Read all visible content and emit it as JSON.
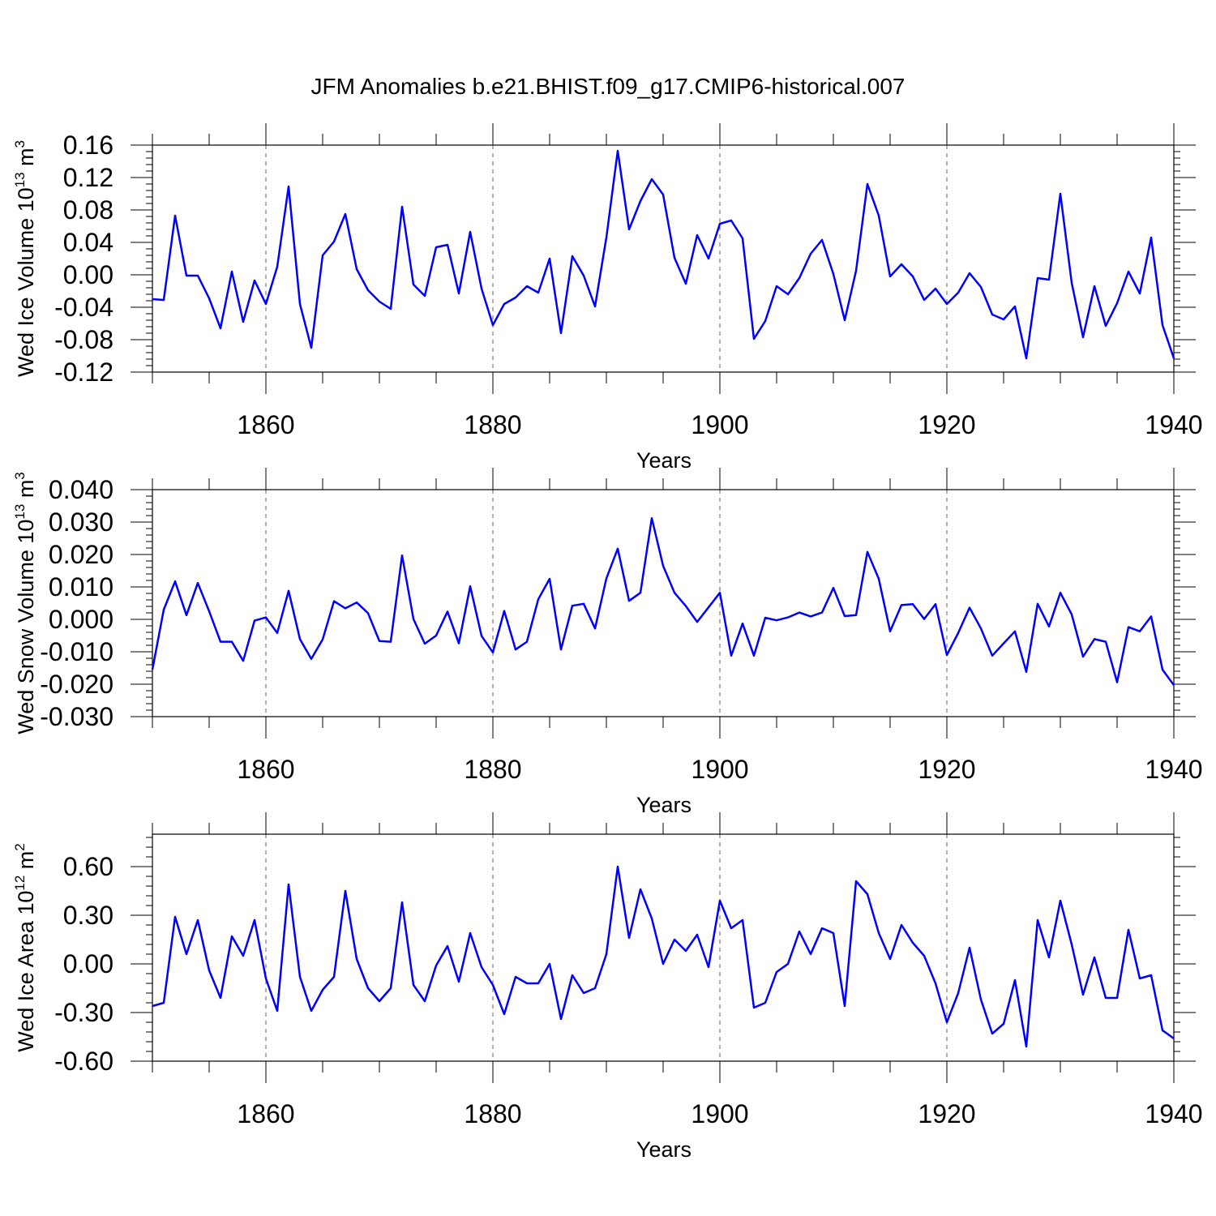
{
  "title": "JFM Anomalies b.e21.BHIST.f09_g17.CMIP6-historical.007",
  "line_color": "#0000ff",
  "years_start": 1850,
  "chart_data": [
    {
      "type": "line",
      "ylabel_main": "Wed Ice Volume 10",
      "ylabel_exp": "13",
      "ylabel_unit": " m",
      "ylabel_unit_exp": "3",
      "xlabel": "Years",
      "xlim": [
        1850,
        1940
      ],
      "ylim": [
        -0.12,
        0.16
      ],
      "yticks": [
        -0.12,
        -0.08,
        -0.04,
        0.0,
        0.04,
        0.08,
        0.12,
        0.16
      ],
      "ytick_labels": [
        "-0.12",
        "-0.08",
        "-0.04",
        "0.00",
        "0.04",
        "0.08",
        "0.12",
        "0.16"
      ],
      "xticks": [
        1860,
        1880,
        1900,
        1920,
        1940
      ],
      "xtick_labels": [
        "1860",
        "1880",
        "1900",
        "1920",
        "1940"
      ],
      "values": [
        -0.03,
        -0.031,
        0.073,
        -0.001,
        -0.001,
        -0.029,
        -0.066,
        0.004,
        -0.058,
        -0.007,
        -0.036,
        0.01,
        0.109,
        -0.036,
        -0.09,
        0.024,
        0.041,
        0.075,
        0.007,
        -0.019,
        -0.033,
        -0.042,
        0.084,
        -0.012,
        -0.026,
        0.034,
        0.037,
        -0.023,
        0.053,
        -0.017,
        -0.062,
        -0.036,
        -0.028,
        -0.014,
        -0.022,
        0.02,
        -0.072,
        0.023,
        -0.001,
        -0.039,
        0.046,
        0.153,
        0.056,
        0.091,
        0.118,
        0.099,
        0.021,
        -0.011,
        0.049,
        0.02,
        0.063,
        0.067,
        0.045,
        -0.079,
        -0.057,
        -0.014,
        -0.024,
        -0.004,
        0.026,
        0.043,
        0.001,
        -0.056,
        0.005,
        0.112,
        0.073,
        -0.002,
        0.013,
        -0.002,
        -0.031,
        -0.017,
        -0.036,
        -0.022,
        0.002,
        -0.015,
        -0.049,
        -0.055,
        -0.039,
        -0.103,
        -0.004,
        -0.006,
        0.1,
        -0.01,
        -0.077,
        -0.014,
        -0.063,
        -0.035,
        0.004,
        -0.023,
        0.046,
        -0.062,
        -0.103
      ]
    },
    {
      "type": "line",
      "ylabel_main": "Wed Snow Volume 10",
      "ylabel_exp": "13",
      "ylabel_unit": " m",
      "ylabel_unit_exp": "3",
      "xlabel": "Years",
      "xlim": [
        1850,
        1940
      ],
      "ylim": [
        -0.03,
        0.04
      ],
      "yticks": [
        -0.03,
        -0.02,
        -0.01,
        0.0,
        0.01,
        0.02,
        0.03,
        0.04
      ],
      "ytick_labels": [
        "-0.030",
        "-0.020",
        "-0.010",
        "0.000",
        "0.010",
        "0.020",
        "0.030",
        "0.040"
      ],
      "xticks": [
        1860,
        1880,
        1900,
        1920,
        1940
      ],
      "xtick_labels": [
        "1860",
        "1880",
        "1900",
        "1920",
        "1940"
      ],
      "values": [
        -0.0155,
        0.003,
        0.0117,
        0.0013,
        0.0112,
        0.0025,
        -0.0069,
        -0.0069,
        -0.0128,
        -0.0004,
        0.0006,
        -0.0042,
        0.0088,
        -0.0061,
        -0.0122,
        -0.0062,
        0.0056,
        0.0034,
        0.0052,
        0.0019,
        -0.0067,
        -0.0069,
        0.0197,
        0.0001,
        -0.0075,
        -0.005,
        0.0024,
        -0.0074,
        0.0102,
        -0.0051,
        -0.0102,
        0.0026,
        -0.0093,
        -0.0069,
        0.0062,
        0.0125,
        -0.0093,
        0.0042,
        0.0048,
        -0.0028,
        0.0126,
        0.0218,
        0.0057,
        0.0082,
        0.0312,
        0.0165,
        0.0082,
        0.0041,
        -0.0008,
        0.0037,
        0.0082,
        -0.0112,
        -0.0013,
        -0.0112,
        0.0005,
        -0.0003,
        0.0006,
        0.0021,
        0.0009,
        0.0021,
        0.0097,
        0.001,
        0.0013,
        0.0208,
        0.0125,
        -0.0037,
        0.0044,
        0.0047,
        0.0001,
        0.0047,
        -0.011,
        -0.0042,
        0.0036,
        -0.0028,
        -0.0112,
        -0.0074,
        -0.0037,
        -0.0162,
        0.0048,
        -0.0022,
        0.0082,
        0.0015,
        -0.0115,
        -0.0061,
        -0.0069,
        -0.0194,
        -0.0024,
        -0.0037,
        0.0009,
        -0.0155,
        -0.0203
      ]
    },
    {
      "type": "line",
      "ylabel_main": "Wed Ice Area 10",
      "ylabel_exp": "12",
      "ylabel_unit": " m",
      "ylabel_unit_exp": "2",
      "xlabel": "Years",
      "xlim": [
        1850,
        1940
      ],
      "ylim": [
        -0.6,
        0.8
      ],
      "yticks": [
        -0.6,
        -0.3,
        0.0,
        0.3,
        0.6
      ],
      "ytick_labels": [
        "-0.60",
        "-0.30",
        "0.00",
        "0.30",
        "0.60"
      ],
      "xticks": [
        1860,
        1880,
        1900,
        1920,
        1940
      ],
      "xtick_labels": [
        "1860",
        "1880",
        "1900",
        "1920",
        "1940"
      ],
      "values": [
        -0.26,
        -0.24,
        0.29,
        0.06,
        0.27,
        -0.04,
        -0.21,
        0.17,
        0.05,
        0.27,
        -0.09,
        -0.29,
        0.49,
        -0.08,
        -0.29,
        -0.16,
        -0.08,
        0.45,
        0.03,
        -0.15,
        -0.23,
        -0.15,
        0.38,
        -0.13,
        -0.23,
        -0.01,
        0.11,
        -0.11,
        0.19,
        -0.02,
        -0.13,
        -0.31,
        -0.08,
        -0.12,
        -0.12,
        0.0,
        -0.34,
        -0.07,
        -0.18,
        -0.15,
        0.06,
        0.6,
        0.16,
        0.46,
        0.28,
        0.0,
        0.15,
        0.08,
        0.18,
        -0.02,
        0.39,
        0.22,
        0.27,
        -0.27,
        -0.24,
        -0.05,
        0.0,
        0.2,
        0.06,
        0.22,
        0.19,
        -0.26,
        0.51,
        0.43,
        0.19,
        0.03,
        0.24,
        0.13,
        0.05,
        -0.12,
        -0.36,
        -0.18,
        0.1,
        -0.22,
        -0.43,
        -0.37,
        -0.1,
        -0.51,
        0.27,
        0.04,
        0.39,
        0.12,
        -0.19,
        0.04,
        -0.21,
        -0.21,
        0.21,
        -0.09,
        -0.07,
        -0.41,
        -0.46
      ]
    }
  ]
}
